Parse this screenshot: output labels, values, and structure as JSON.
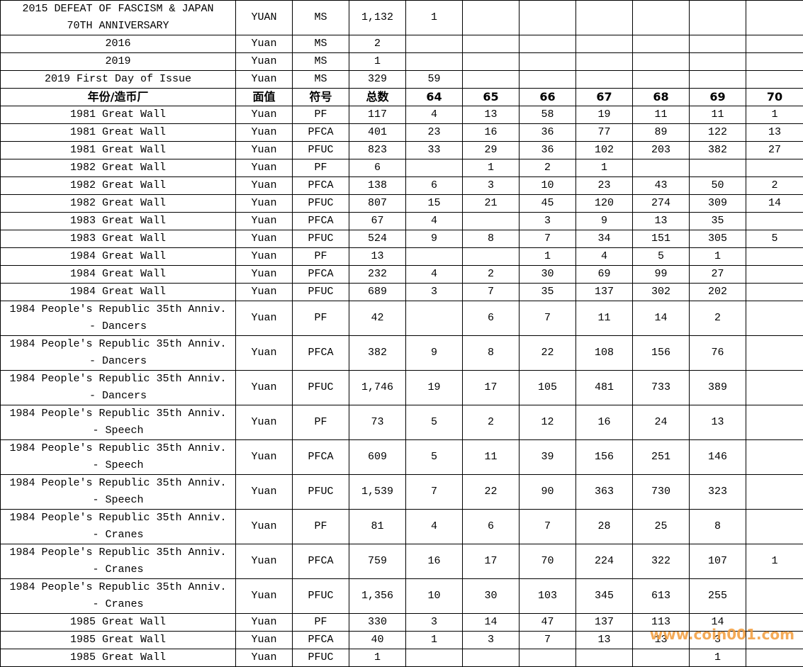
{
  "table": {
    "top_rows": [
      [
        "2015 DEFEAT OF FASCISM & JAPAN 70TH ANNIVERSARY",
        "YUAN",
        "MS",
        "1,132",
        "1",
        null,
        null,
        null,
        null,
        null,
        null
      ],
      [
        "2016",
        "Yuan",
        "MS",
        "2",
        null,
        null,
        null,
        null,
        null,
        null,
        null
      ],
      [
        "2019",
        "Yuan",
        "MS",
        "1",
        null,
        null,
        null,
        null,
        null,
        null,
        null
      ],
      [
        "2019 First Day of Issue",
        "Yuan",
        "MS",
        "329",
        "59",
        null,
        null,
        null,
        null,
        null,
        null
      ]
    ],
    "header": [
      "年份/造币厂",
      "面值",
      "符号",
      "总数",
      "64",
      "65",
      "66",
      "67",
      "68",
      "69",
      "70"
    ],
    "rows": [
      [
        "1981 Great Wall",
        "Yuan",
        "PF",
        "117",
        "4",
        "13",
        "58",
        "19",
        "11",
        "11",
        "1"
      ],
      [
        "1981 Great Wall",
        "Yuan",
        "PFCA",
        "401",
        "23",
        "16",
        "36",
        "77",
        "89",
        "122",
        "13"
      ],
      [
        "1981 Great Wall",
        "Yuan",
        "PFUC",
        "823",
        "33",
        "29",
        "36",
        "102",
        "203",
        "382",
        "27"
      ],
      [
        "1982 Great Wall",
        "Yuan",
        "PF",
        "6",
        null,
        "1",
        "2",
        "1",
        null,
        null,
        null
      ],
      [
        "1982 Great Wall",
        "Yuan",
        "PFCA",
        "138",
        "6",
        "3",
        "10",
        "23",
        "43",
        "50",
        "2"
      ],
      [
        "1982 Great Wall",
        "Yuan",
        "PFUC",
        "807",
        "15",
        "21",
        "45",
        "120",
        "274",
        "309",
        "14"
      ],
      [
        "1983 Great Wall",
        "Yuan",
        "PFCA",
        "67",
        "4",
        null,
        "3",
        "9",
        "13",
        "35",
        null
      ],
      [
        "1983 Great Wall",
        "Yuan",
        "PFUC",
        "524",
        "9",
        "8",
        "7",
        "34",
        "151",
        "305",
        "5"
      ],
      [
        "1984 Great Wall",
        "Yuan",
        "PF",
        "13",
        null,
        null,
        "1",
        "4",
        "5",
        "1",
        null
      ],
      [
        "1984 Great Wall",
        "Yuan",
        "PFCA",
        "232",
        "4",
        "2",
        "30",
        "69",
        "99",
        "27",
        null
      ],
      [
        "1984 Great Wall",
        "Yuan",
        "PFUC",
        "689",
        "3",
        "7",
        "35",
        "137",
        "302",
        "202",
        null
      ],
      [
        "1984 People's Republic 35th Anniv. - Dancers",
        "Yuan",
        "PF",
        "42",
        null,
        "6",
        "7",
        "11",
        "14",
        "2",
        null
      ],
      [
        "1984 People's Republic 35th Anniv. - Dancers",
        "Yuan",
        "PFCA",
        "382",
        "9",
        "8",
        "22",
        "108",
        "156",
        "76",
        null
      ],
      [
        "1984 People's Republic 35th Anniv. - Dancers",
        "Yuan",
        "PFUC",
        "1,746",
        "19",
        "17",
        "105",
        "481",
        "733",
        "389",
        null
      ],
      [
        "1984 People's Republic 35th Anniv. - Speech",
        "Yuan",
        "PF",
        "73",
        "5",
        "2",
        "12",
        "16",
        "24",
        "13",
        null
      ],
      [
        "1984 People's Republic 35th Anniv. - Speech",
        "Yuan",
        "PFCA",
        "609",
        "5",
        "11",
        "39",
        "156",
        "251",
        "146",
        null
      ],
      [
        "1984 People's Republic 35th Anniv. - Speech",
        "Yuan",
        "PFUC",
        "1,539",
        "7",
        "22",
        "90",
        "363",
        "730",
        "323",
        null
      ],
      [
        "1984 People's Republic 35th Anniv. - Cranes",
        "Yuan",
        "PF",
        "81",
        "4",
        "6",
        "7",
        "28",
        "25",
        "8",
        null
      ],
      [
        "1984 People's Republic 35th Anniv. - Cranes",
        "Yuan",
        "PFCA",
        "759",
        "16",
        "17",
        "70",
        "224",
        "322",
        "107",
        "1"
      ],
      [
        "1984 People's Republic 35th Anniv. - Cranes",
        "Yuan",
        "PFUC",
        "1,356",
        "10",
        "30",
        "103",
        "345",
        "613",
        "255",
        null
      ],
      [
        "1985 Great Wall",
        "Yuan",
        "PF",
        "330",
        "3",
        "14",
        "47",
        "137",
        "113",
        "14",
        null
      ],
      [
        "1985 Great Wall",
        "Yuan",
        "PFCA",
        "40",
        "1",
        "3",
        "7",
        "13",
        "13",
        "3",
        null
      ],
      [
        "1985 Great Wall",
        "Yuan",
        "PFUC",
        "1",
        null,
        null,
        null,
        null,
        null,
        "1",
        null
      ]
    ]
  },
  "watermark": "www.coin001.com"
}
